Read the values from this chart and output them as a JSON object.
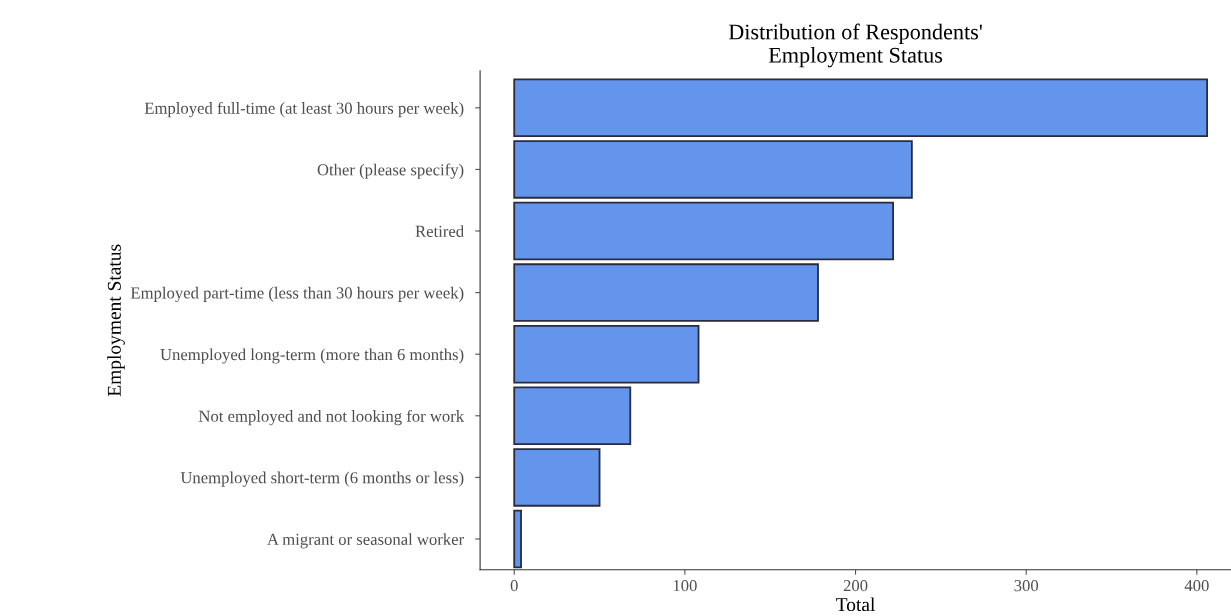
{
  "chart_data": {
    "type": "bar",
    "orientation": "horizontal",
    "title": "Distribution of Respondents'\nEmployment Status",
    "xlabel": "Total",
    "ylabel": "Employment Status",
    "categories": [
      "Employed full-time (at least 30 hours per week)",
      "Other (please specify)",
      "Retired",
      "Employed part-time (less than 30 hours per week)",
      "Unemployed long-term (more than 6 months)",
      "Not employed and not looking for work",
      "Unemployed short-term (6 months or less)",
      "A migrant or seasonal worker"
    ],
    "values": [
      406,
      233,
      222,
      178,
      108,
      68,
      50,
      4
    ],
    "color": "#6495ed",
    "xlim": [
      -20,
      420
    ],
    "xticks": [
      0,
      100,
      200,
      300,
      400
    ],
    "grid": false,
    "legend": false
  }
}
